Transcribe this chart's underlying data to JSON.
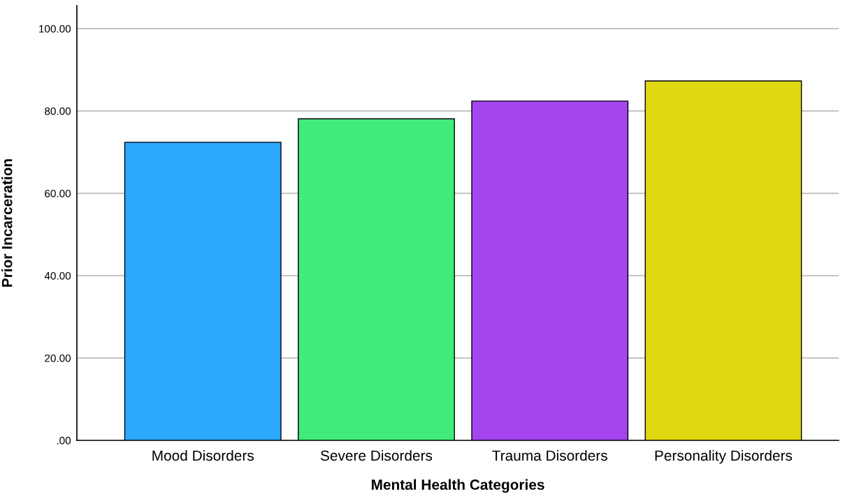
{
  "chart_data": {
    "type": "bar",
    "xlabel": "Mental Health Categories",
    "ylabel": "Prior Incarceration",
    "categories": [
      "Mood Disorders",
      "Severe Disorders",
      "Trauma Disorders",
      "Personality Disorders"
    ],
    "values": [
      72.4,
      78.1,
      82.4,
      87.3
    ],
    "colors": [
      "#2ba9fc",
      "#3feb7a",
      "#a545ee",
      "#dfd70f"
    ],
    "ylim": [
      0,
      105.6
    ],
    "yticks": [
      {
        "value": 0,
        "label": ".00"
      },
      {
        "value": 20,
        "label": "20.00"
      },
      {
        "value": 40,
        "label": "40.00"
      },
      {
        "value": 60,
        "label": "60.00"
      },
      {
        "value": 80,
        "label": "80.00"
      },
      {
        "value": 100,
        "label": "100.00"
      }
    ],
    "grid": "y",
    "legend": false
  }
}
